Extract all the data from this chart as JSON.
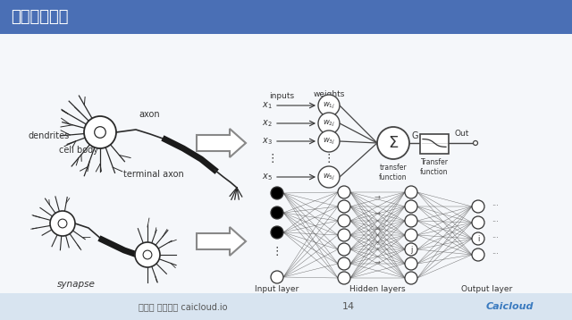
{
  "title": "神经网络模型",
  "title_bg_color": "#4a6fb5",
  "title_text_color": "#ffffff",
  "slide_bg_color": "#d8e4f0",
  "content_bg_color": "#f5f7fa",
  "footer_text": "邦泽宇 才云科技 caicloud.io",
  "footer_page": "14",
  "bottom_left_label": "synapse",
  "top_labels": [
    "dendrites",
    "axon",
    "cell body",
    "terminal axon"
  ],
  "bottom_right_labels": [
    "Input layer",
    "Hidden layers",
    "Output layer"
  ]
}
